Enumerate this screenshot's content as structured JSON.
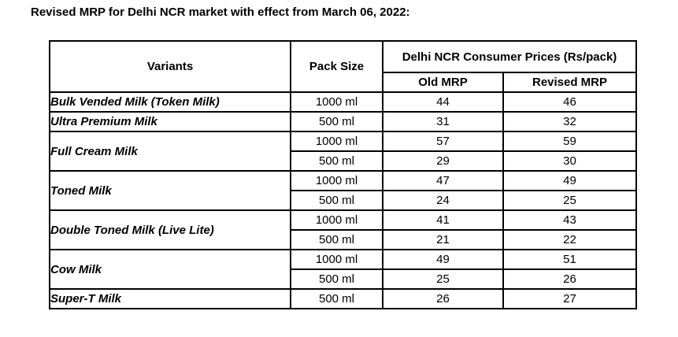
{
  "title": "Revised MRP for Delhi NCR market with effect from March 06, 2022:",
  "table": {
    "headers": {
      "variants": "Variants",
      "pack_size": "Pack Size",
      "price_group": "Delhi NCR Consumer Prices (Rs/pack)",
      "old_mrp": "Old MRP",
      "revised_mrp": "Revised MRP"
    },
    "rows": [
      {
        "variant": "Bulk Vended Milk (Token Milk)",
        "packs": [
          {
            "size": "1000 ml",
            "old": "44",
            "revised": "46"
          }
        ]
      },
      {
        "variant": "Ultra Premium Milk",
        "packs": [
          {
            "size": "500 ml",
            "old": "31",
            "revised": "32"
          }
        ]
      },
      {
        "variant": "Full Cream Milk",
        "packs": [
          {
            "size": "1000 ml",
            "old": "57",
            "revised": "59"
          },
          {
            "size": "500 ml",
            "old": "29",
            "revised": "30"
          }
        ]
      },
      {
        "variant": "Toned Milk",
        "packs": [
          {
            "size": "1000 ml",
            "old": "47",
            "revised": "49"
          },
          {
            "size": "500 ml",
            "old": "24",
            "revised": "25"
          }
        ]
      },
      {
        "variant": "Double Toned Milk (Live Lite)",
        "packs": [
          {
            "size": "1000 ml",
            "old": "41",
            "revised": "43"
          },
          {
            "size": "500 ml",
            "old": "21",
            "revised": "22"
          }
        ]
      },
      {
        "variant": "Cow Milk",
        "packs": [
          {
            "size": "1000 ml",
            "old": "49",
            "revised": "51"
          },
          {
            "size": "500 ml",
            "old": "25",
            "revised": "26"
          }
        ]
      },
      {
        "variant": "Super-T Milk",
        "packs": [
          {
            "size": "500 ml",
            "old": "26",
            "revised": "27"
          }
        ]
      }
    ]
  },
  "colors": {
    "text": "#000000",
    "border": "#000000",
    "background": "#ffffff"
  }
}
